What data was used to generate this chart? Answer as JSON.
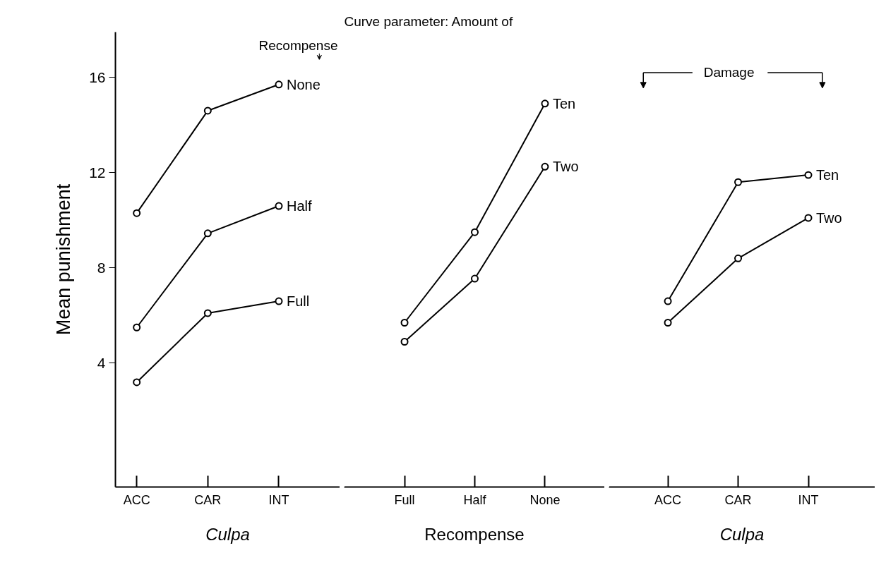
{
  "chart_data": [
    {
      "type": "line",
      "xlabel": "Culpa",
      "ylabel": "Mean punishment",
      "categories": [
        "ACC",
        "CAR",
        "INT"
      ],
      "ylim": [
        -1.2,
        17.9
      ],
      "yticks": [
        4,
        8,
        12,
        16
      ],
      "grid": false,
      "marker": "circle",
      "annotations": [
        "Recompense"
      ],
      "series": [
        {
          "name": "None",
          "color": "#000000",
          "values": [
            10.3,
            14.6,
            15.7
          ]
        },
        {
          "name": "Half",
          "color": "#000000",
          "values": [
            5.5,
            9.45,
            10.6
          ]
        },
        {
          "name": "Full",
          "color": "#000000",
          "values": [
            3.2,
            6.1,
            6.6
          ]
        }
      ]
    },
    {
      "type": "line",
      "title": "Curve parameter: Amount of",
      "xlabel": "Recompense",
      "categories": [
        "Full",
        "Half",
        "None"
      ],
      "ylim": [
        -1.2,
        17.9
      ],
      "yticks": [
        4,
        8,
        12,
        16
      ],
      "tick_labels": "x",
      "grid": false,
      "marker": "circle",
      "series": [
        {
          "name": "Ten",
          "color": "#000000",
          "values": [
            5.7,
            9.5,
            14.9
          ]
        },
        {
          "name": "Two",
          "color": "#000000",
          "values": [
            4.9,
            7.55,
            12.25
          ]
        }
      ]
    },
    {
      "type": "line",
      "xlabel": "Culpa",
      "categories": [
        "ACC",
        "CAR",
        "INT"
      ],
      "ylim": [
        -1.2,
        17.9
      ],
      "yticks": [
        4,
        8,
        12,
        16
      ],
      "tick_labels": "x",
      "grid": false,
      "marker": "circle",
      "annotations": [
        "Damage"
      ],
      "series": [
        {
          "name": "Ten",
          "color": "#000000",
          "values": [
            6.6,
            11.6,
            11.9
          ]
        },
        {
          "name": "Two",
          "color": "#000000",
          "values": [
            5.7,
            8.4,
            10.1
          ]
        }
      ]
    }
  ]
}
